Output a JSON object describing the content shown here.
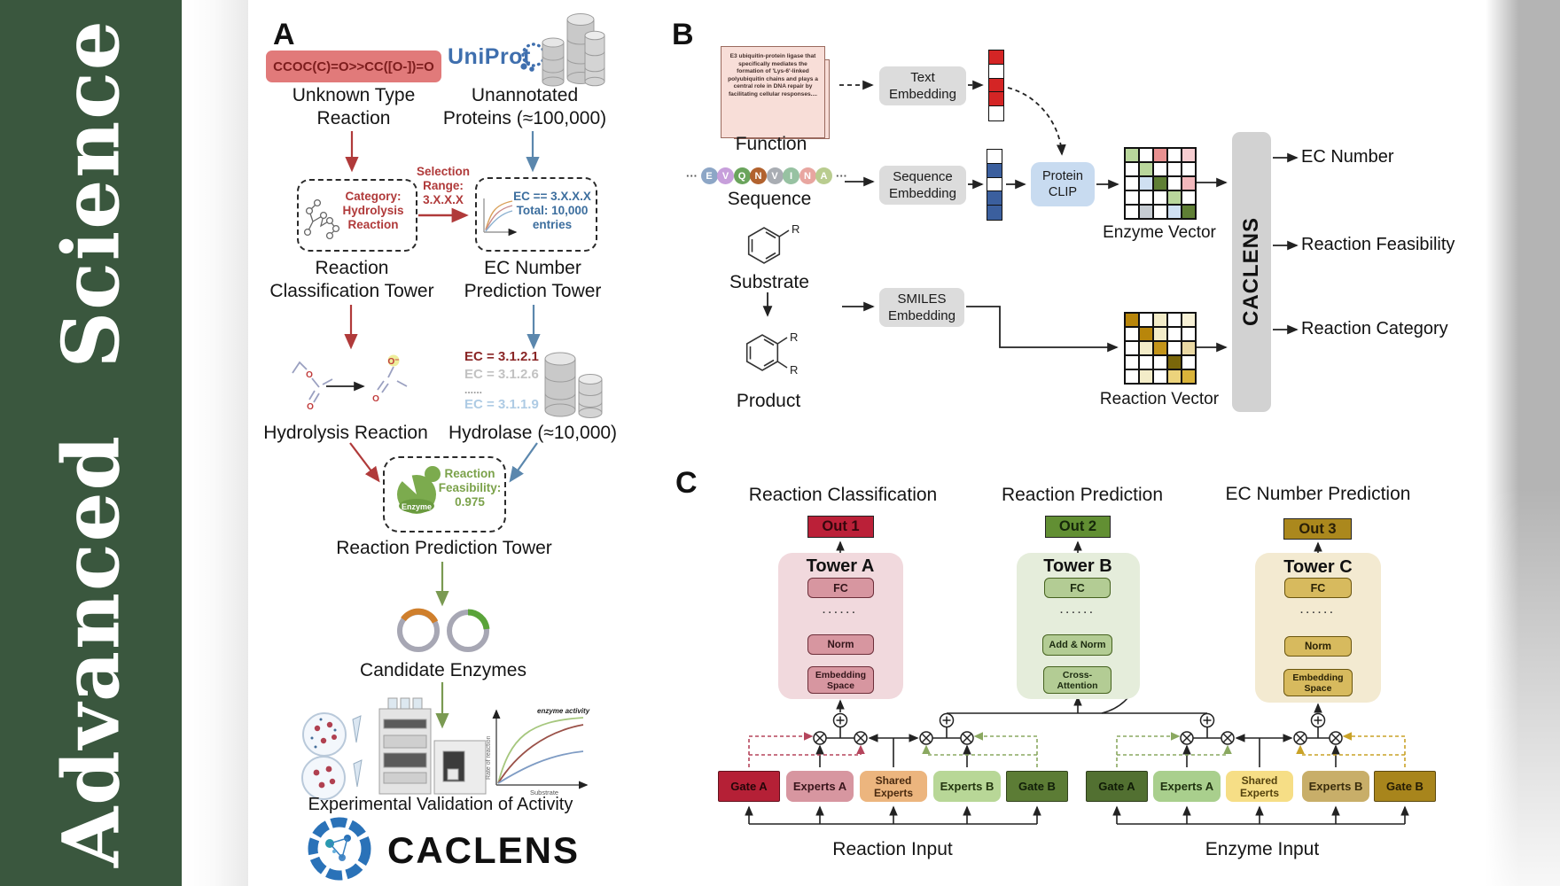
{
  "journal": {
    "name": "Advanced  Science"
  },
  "colors": {
    "sidebar_green": "#3a573e",
    "accent_red": "#bb2038",
    "accent_green": "#628f33",
    "accent_gold": "#ab881d",
    "uniprot_blue": "#3f6fae",
    "caclens_bar_gray": "#d2d2d2"
  },
  "panelA": {
    "label": "A",
    "smiles": "CCOC(C)=O>>CC([O-])=O",
    "unknown_reaction": "Unknown Type\nReaction",
    "uniprot": "UniProt",
    "unannotated": "Unannotated\nProteins (≈100,000)",
    "selection_range": "Selection\nRange:\n3.X.X.X",
    "category_box": "Category:\nHydrolysis\nReaction",
    "ec_box": "EC == 3.X.X.X\nTotal: 10,000\nentries",
    "classification_tower": "Reaction\nClassification Tower",
    "ec_tower": "EC Number\nPrediction Tower",
    "ec_list": [
      "EC = 3.1.2.1",
      "EC = 3.1.2.6",
      "......",
      "EC = 3.1.1.9"
    ],
    "hydrolysis": "Hydrolysis Reaction",
    "hydrolase": "Hydrolase (≈10,000)",
    "enzyme_badge": "Enzyme",
    "feasibility": "Reaction\nFeasibility:\n0.975",
    "prediction_tower": "Reaction Prediction Tower",
    "candidate_enzymes": "Candidate Enzymes",
    "validation": "Experimental Validation of Activity",
    "brand": "CACLENS",
    "graph": {
      "ylabel": "Rate of reaction",
      "xlabel": "Substrate",
      "annotation": "enzyme activity"
    }
  },
  "panelB": {
    "label": "B",
    "function_card": "E3 ubiquitin-protein ligase that specifically mediates the formation of 'Lys-6'-linked polyubiquitin chains and plays a central role in DNA repair by facilitating cellular responses....",
    "function_label": "Function",
    "sequence_label": "Sequence",
    "substrate_label": "Substrate",
    "product_label": "Product",
    "r_group": "R",
    "ellipsis": "···",
    "sequence": [
      {
        "ch": "E",
        "color": "#8da6c6"
      },
      {
        "ch": "V",
        "color": "#c79fdb"
      },
      {
        "ch": "Q",
        "color": "#6aa45c"
      },
      {
        "ch": "N",
        "color": "#b2622e"
      },
      {
        "ch": "V",
        "color": "#a9adb3"
      },
      {
        "ch": "I",
        "color": "#97c2a2"
      },
      {
        "ch": "N",
        "color": "#e8a6a0"
      },
      {
        "ch": "A",
        "color": "#b9cc8f"
      }
    ],
    "text_embedding": "Text\nEmbedding",
    "sequence_embedding": "Sequence\nEmbedding",
    "smiles_embedding": "SMILES\nEmbedding",
    "protein_clip": "Protein\nCLIP",
    "text_vector": [
      "#d42525",
      "#ffffff",
      "#d42525",
      "#d42525",
      "#ffffff"
    ],
    "sequence_vector": [
      "#ffffff",
      "#3b5f9e",
      "#ffffff",
      "#3b5f9e",
      "#3b5f9e"
    ],
    "enzyme_vector_label": "Enzyme Vector",
    "reaction_vector_label": "Reaction Vector",
    "enzyme_grid": [
      [
        "#b9d69c",
        "#ffffff",
        "#e89090",
        "#ffffff",
        "#f6cdd0"
      ],
      [
        "#ffffff",
        "#b9d69c",
        "#ffffff",
        "#ffffff",
        "#ffffff"
      ],
      [
        "#ffffff",
        "#cfe0f2",
        "#5f7f35",
        "#ffffff",
        "#f2b8bc"
      ],
      [
        "#ffffff",
        "#ffffff",
        "#ffffff",
        "#b9d69c",
        "#ffffff"
      ],
      [
        "#ffffff",
        "#c6ccd2",
        "#ffffff",
        "#cfe0f2",
        "#5f7f35"
      ]
    ],
    "reaction_grid": [
      [
        "#b8860b",
        "#ffffff",
        "#f3ecc8",
        "#ffffff",
        "#f7f1d6"
      ],
      [
        "#ffffff",
        "#b8860b",
        "#f3ecc8",
        "#ffffff",
        "#ffffff"
      ],
      [
        "#ffffff",
        "#f3ecc8",
        "#c3941a",
        "#ffffff",
        "#ead9a4"
      ],
      [
        "#ffffff",
        "#ffffff",
        "#ffffff",
        "#7a660a",
        "#ffffff"
      ],
      [
        "#ffffff",
        "#f3ecc8",
        "#ffffff",
        "#ecd37c",
        "#d9b33a"
      ]
    ],
    "caclens": "CACLENS",
    "outputs": [
      "EC Number",
      "Reaction Feasibility",
      "Reaction Category"
    ]
  },
  "panelC": {
    "label": "C",
    "headers": [
      "Reaction Classification",
      "Reaction Prediction",
      "EC Number Prediction"
    ],
    "outs": [
      "Out 1",
      "Out 2",
      "Out 3"
    ],
    "towers": [
      {
        "title": "Tower A",
        "fc": "FC",
        "dots": "······",
        "mid": "Norm",
        "bottom": "Embedding\nSpace"
      },
      {
        "title": "Tower B",
        "fc": "FC",
        "dots": "······",
        "mid": "Add & Norm",
        "bottom": "Cross-\nAttention"
      },
      {
        "title": "Tower C",
        "fc": "FC",
        "dots": "······",
        "mid": "Norm",
        "bottom": "Embedding\nSpace"
      }
    ],
    "moe_reaction": {
      "gate_a": "Gate A",
      "experts_a": "Experts A",
      "shared": "Shared\nExperts",
      "experts_b": "Experts B",
      "gate_b": "Gate B",
      "input": "Reaction Input"
    },
    "moe_enzyme": {
      "gate_a": "Gate A",
      "experts_a": "Experts A",
      "shared": "Shared\nExperts",
      "experts_b": "Experts B",
      "gate_b": "Gate B",
      "input": "Enzyme Input"
    }
  }
}
